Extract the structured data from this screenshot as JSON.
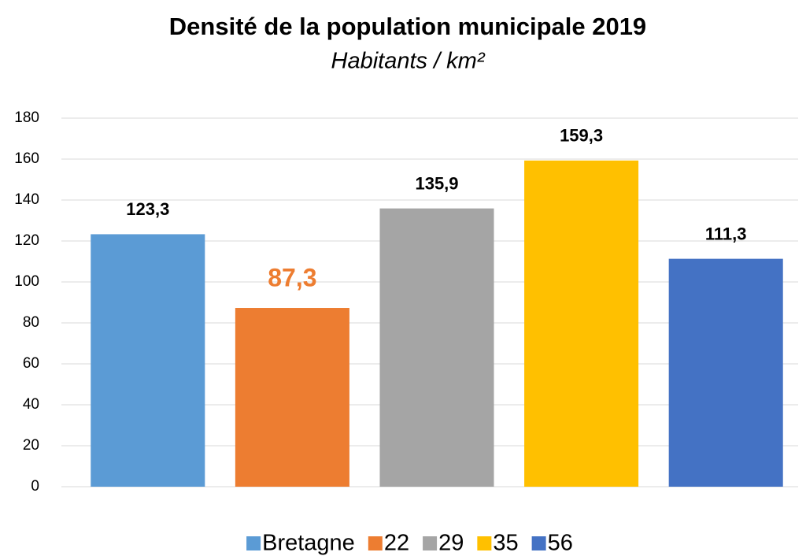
{
  "chart_data": {
    "type": "bar",
    "title": "Densité de la population municipale 2019",
    "subtitle": "Habitants / km²",
    "categories": [
      null
    ],
    "series": [
      {
        "name": "Bretagne",
        "color": "#5b9bd5",
        "values": [
          123.3
        ],
        "value_labels": [
          "123,3"
        ]
      },
      {
        "name": "22",
        "color": "#ed7d31",
        "values": [
          87.3
        ],
        "value_labels": [
          "87,3"
        ],
        "highlight": true
      },
      {
        "name": "29",
        "color": "#a5a5a5",
        "values": [
          135.9
        ],
        "value_labels": [
          "135,9"
        ]
      },
      {
        "name": "35",
        "color": "#ffc000",
        "values": [
          159.3
        ],
        "value_labels": [
          "159,3"
        ]
      },
      {
        "name": "56",
        "color": "#4472c4",
        "values": [
          111.3
        ],
        "value_labels": [
          "111,3"
        ]
      }
    ],
    "ylim": [
      0,
      180
    ],
    "yticks": [
      0,
      20,
      40,
      60,
      80,
      100,
      120,
      140,
      160,
      180
    ],
    "grid": true,
    "legend": "bottom"
  }
}
